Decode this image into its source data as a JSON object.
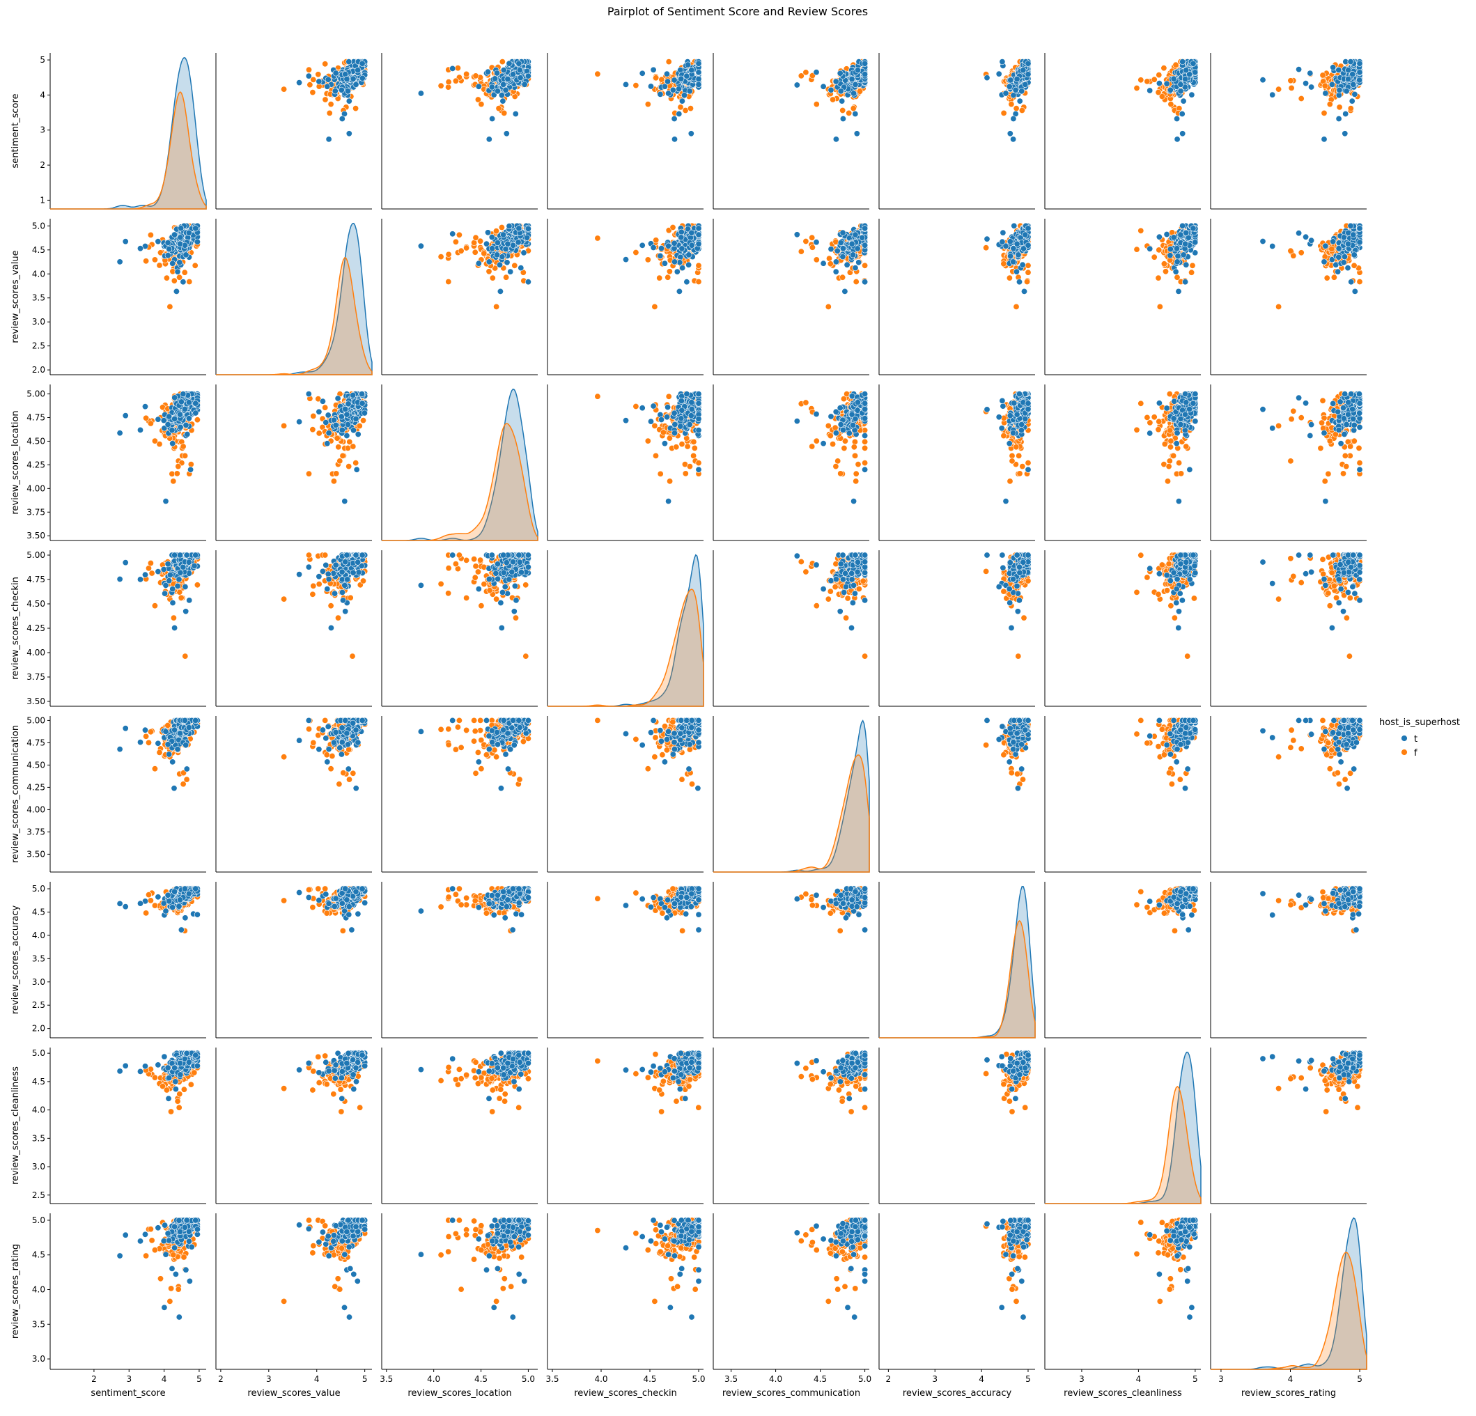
{
  "chart_data": {
    "type": "scatter",
    "title": "Pairplot of Sentiment Score and Review Scores",
    "variables": [
      "sentiment_score",
      "review_scores_value",
      "review_scores_location",
      "review_scores_checkin",
      "review_scores_communication",
      "review_scores_accuracy",
      "review_scores_cleanliness",
      "review_scores_rating"
    ],
    "axis_ranges": [
      [
        0.75,
        5.2
      ],
      [
        1.9,
        5.15
      ],
      [
        3.45,
        5.1
      ],
      [
        3.45,
        5.05
      ],
      [
        3.3,
        5.05
      ],
      [
        1.8,
        5.15
      ],
      [
        2.35,
        5.1
      ],
      [
        2.85,
        5.1
      ]
    ],
    "x_ticks": [
      [
        "2",
        "3",
        "4",
        "5"
      ],
      [
        "2",
        "3",
        "4",
        "5"
      ],
      [
        "3.5",
        "4.0",
        "4.5",
        "5.0"
      ],
      [
        "3.5",
        "4.0",
        "4.5",
        "5.0"
      ],
      [
        "3.5",
        "4.0",
        "4.5",
        "5.0"
      ],
      [
        "2",
        "3",
        "4",
        "5"
      ],
      [
        "3",
        "4",
        "5"
      ],
      [
        "3",
        "4",
        "5"
      ]
    ],
    "y_ticks": [
      [
        "1",
        "2",
        "3",
        "4",
        "5"
      ],
      [
        "2.0",
        "2.5",
        "3.0",
        "3.5",
        "4.0",
        "4.5",
        "5.0"
      ],
      [
        "3.50",
        "3.75",
        "4.00",
        "4.25",
        "4.50",
        "4.75",
        "5.00"
      ],
      [
        "3.50",
        "3.75",
        "4.00",
        "4.25",
        "4.50",
        "4.75",
        "5.00"
      ],
      [
        "3.50",
        "3.75",
        "4.00",
        "4.25",
        "4.50",
        "4.75",
        "5.00"
      ],
      [
        "2.0",
        "2.5",
        "3.0",
        "3.5",
        "4.0",
        "4.5",
        "5.0"
      ],
      [
        "2.5",
        "3.0",
        "3.5",
        "4.0",
        "4.5",
        "5.0"
      ],
      [
        "3.0",
        "3.5",
        "4.0",
        "4.5",
        "5.0"
      ]
    ],
    "hue": "host_is_superhost",
    "series": [
      {
        "name": "t",
        "color": "#1f77b4",
        "means": [
          4.55,
          4.72,
          4.85,
          4.95,
          4.95,
          4.88,
          4.85,
          4.88
        ]
      },
      {
        "name": "f",
        "color": "#ff7f0e",
        "means": [
          4.45,
          4.6,
          4.78,
          4.88,
          4.88,
          4.8,
          4.7,
          4.78
        ]
      }
    ],
    "legend": {
      "placement": "right-center",
      "title": "host_is_superhost",
      "entries": [
        "t",
        "f"
      ]
    },
    "diagonal": "kde",
    "grid": false
  }
}
